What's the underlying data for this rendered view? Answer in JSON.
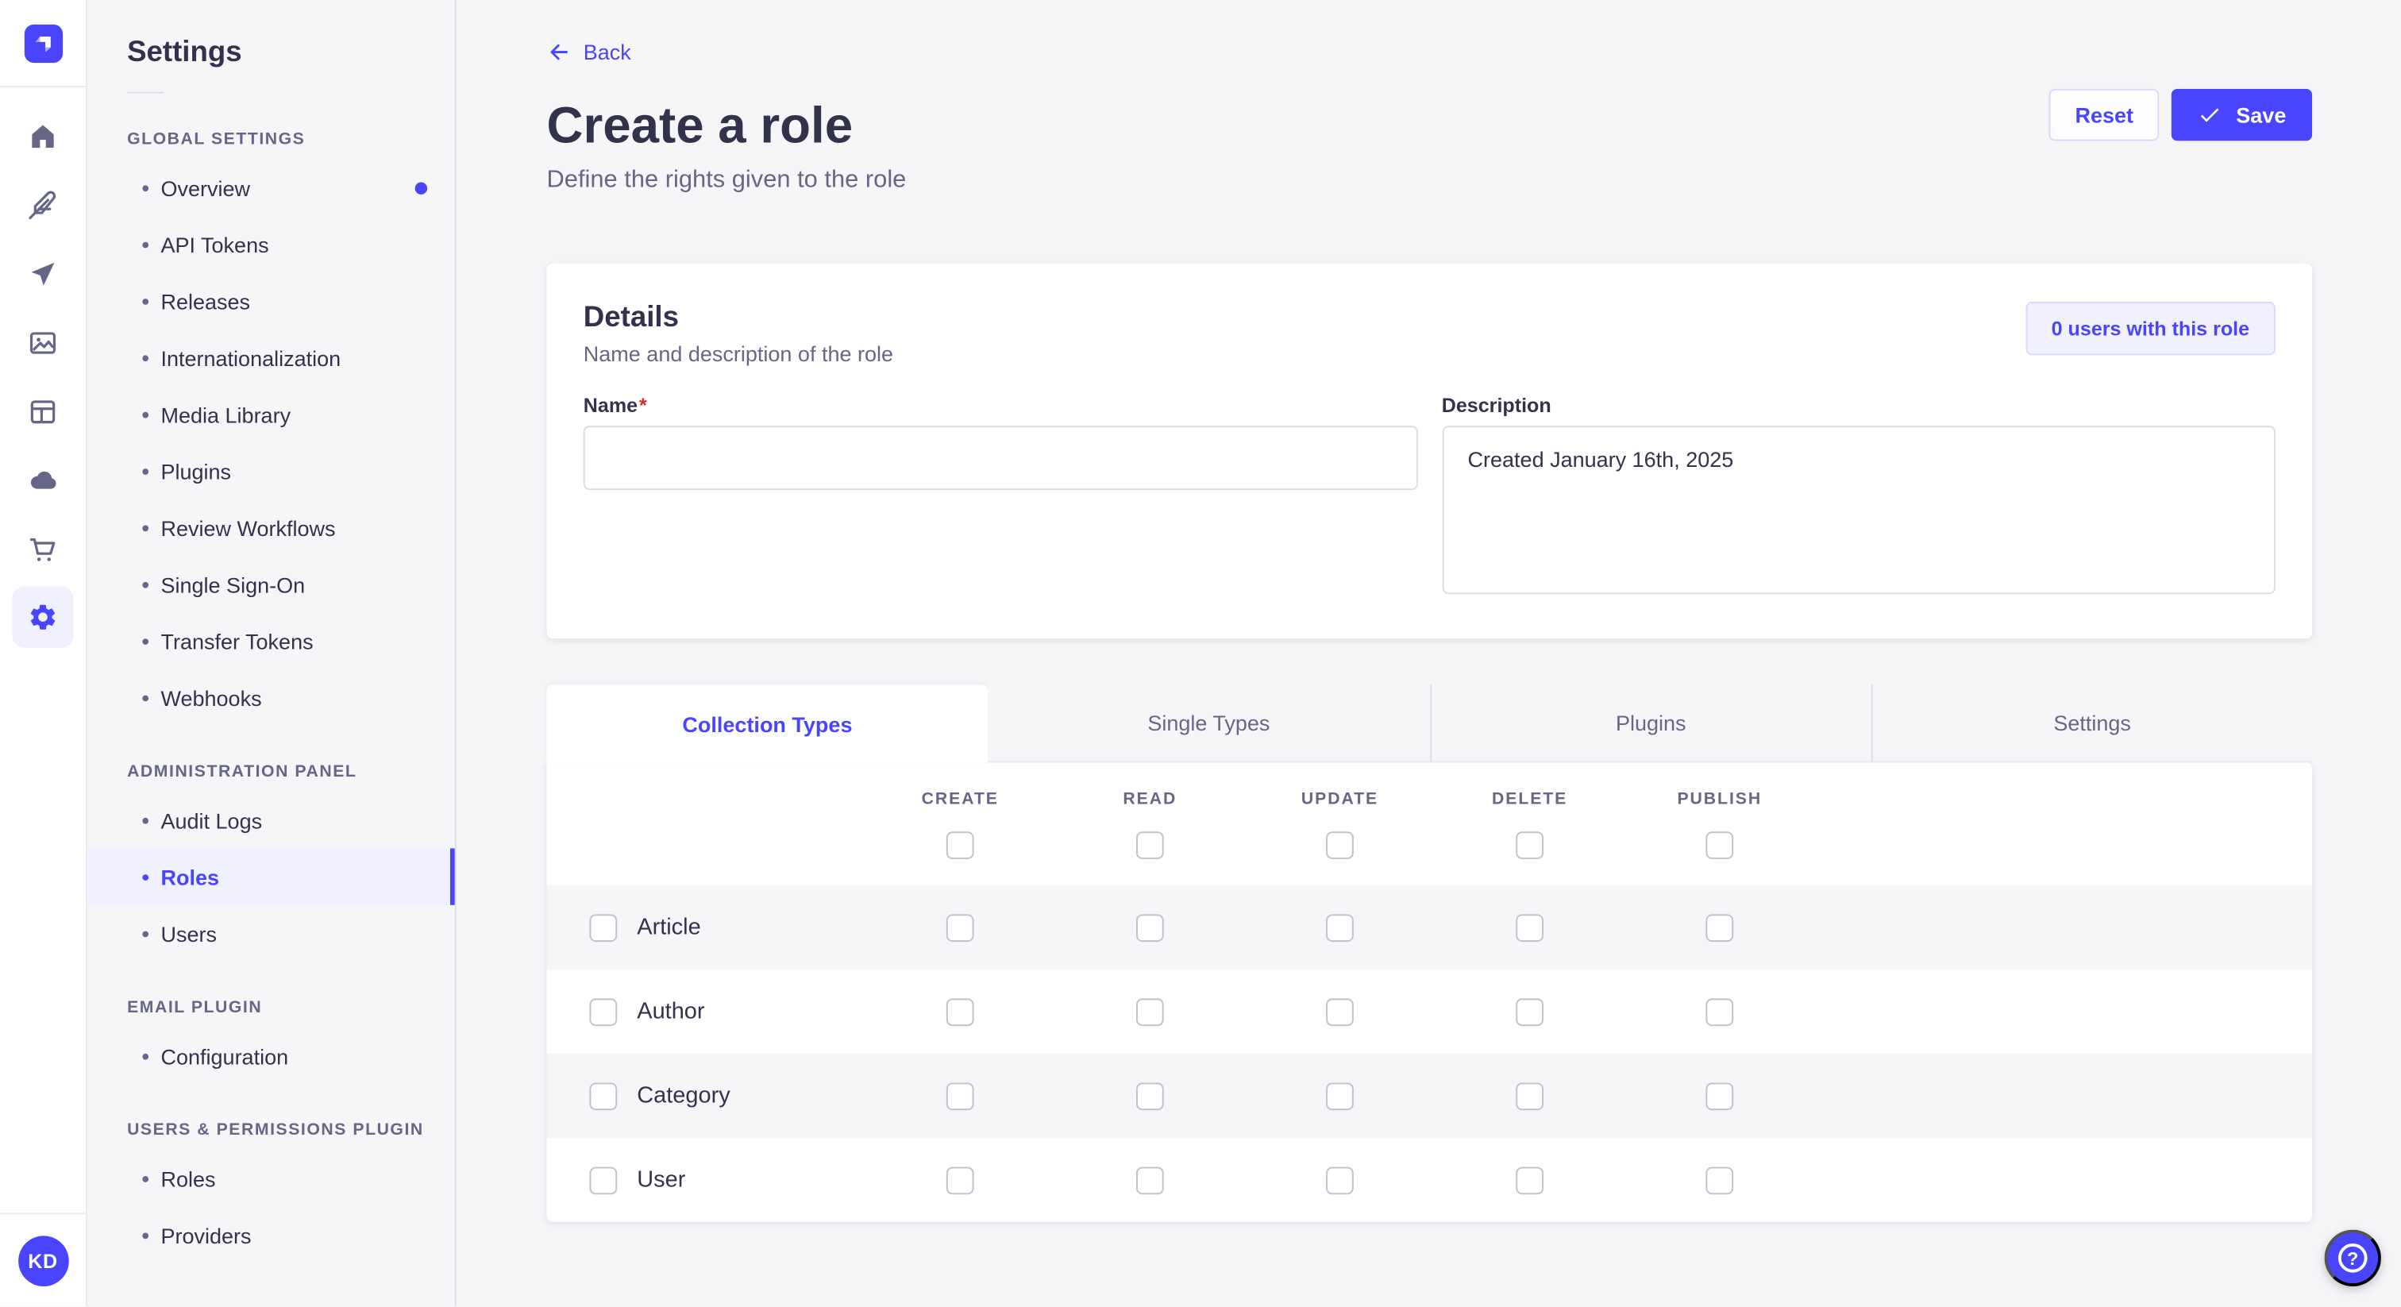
{
  "colors": {
    "primary": "#4945ff",
    "primary_bg": "#f0f0ff",
    "primary_border": "#d9d8ff",
    "text_dark": "#32324d",
    "text_gray": "#666687",
    "page_bg": "#f6f6f9",
    "border": "#dcdce4",
    "checkbox_border": "#c0c0cf",
    "required_red": "#d02b20"
  },
  "rail": {
    "logo_icon": "strapi-logo",
    "icons": [
      {
        "name": "home-icon",
        "active": false
      },
      {
        "name": "feather-icon",
        "active": false
      },
      {
        "name": "send-icon",
        "active": false
      },
      {
        "name": "media-library-icon",
        "active": false
      },
      {
        "name": "layout-icon",
        "active": false
      },
      {
        "name": "cloud-icon",
        "active": false
      },
      {
        "name": "cart-icon",
        "active": false
      },
      {
        "name": "settings-gear-icon",
        "active": true
      }
    ],
    "avatar_initials": "KD"
  },
  "settings_nav": {
    "title": "Settings",
    "sections": [
      {
        "label": "GLOBAL SETTINGS",
        "items": [
          {
            "label": "Overview",
            "notification_dot": true
          },
          {
            "label": "API Tokens"
          },
          {
            "label": "Releases"
          },
          {
            "label": "Internationalization"
          },
          {
            "label": "Media Library"
          },
          {
            "label": "Plugins"
          },
          {
            "label": "Review Workflows"
          },
          {
            "label": "Single Sign-On"
          },
          {
            "label": "Transfer Tokens"
          },
          {
            "label": "Webhooks"
          }
        ]
      },
      {
        "label": "ADMINISTRATION PANEL",
        "items": [
          {
            "label": "Audit Logs"
          },
          {
            "label": "Roles",
            "active": true
          },
          {
            "label": "Users"
          }
        ]
      },
      {
        "label": "EMAIL PLUGIN",
        "items": [
          {
            "label": "Configuration"
          }
        ]
      },
      {
        "label": "USERS & PERMISSIONS PLUGIN",
        "items": [
          {
            "label": "Roles"
          },
          {
            "label": "Providers"
          }
        ]
      }
    ]
  },
  "header": {
    "back_label": "Back",
    "title": "Create a role",
    "subtitle": "Define the rights given to the role",
    "reset_label": "Reset",
    "save_label": "Save",
    "save_icon": "check-icon"
  },
  "details_card": {
    "title": "Details",
    "subtitle": "Name and description of the role",
    "users_badge": "0 users with this role",
    "name_label": "Name",
    "name_required_mark": "*",
    "name_value": "",
    "description_label": "Description",
    "description_value": "Created January 16th, 2025"
  },
  "permissions": {
    "tabs": [
      {
        "label": "Collection Types",
        "active": true
      },
      {
        "label": "Single Types",
        "active": false
      },
      {
        "label": "Plugins",
        "active": false
      },
      {
        "label": "Settings",
        "active": false
      }
    ],
    "columns": [
      "CREATE",
      "READ",
      "UPDATE",
      "DELETE",
      "PUBLISH"
    ],
    "select_all": [
      false,
      false,
      false,
      false,
      false
    ],
    "rows": [
      {
        "label": "Article",
        "checked": false,
        "permissions": [
          false,
          false,
          false,
          false,
          false
        ]
      },
      {
        "label": "Author",
        "checked": false,
        "permissions": [
          false,
          false,
          false,
          false,
          false
        ]
      },
      {
        "label": "Category",
        "checked": false,
        "permissions": [
          false,
          false,
          false,
          false,
          false
        ]
      },
      {
        "label": "User",
        "checked": false,
        "permissions": [
          false,
          false,
          false,
          false,
          false
        ]
      }
    ]
  },
  "help_fab": {
    "icon": "question-mark-icon",
    "glyph": "?"
  }
}
